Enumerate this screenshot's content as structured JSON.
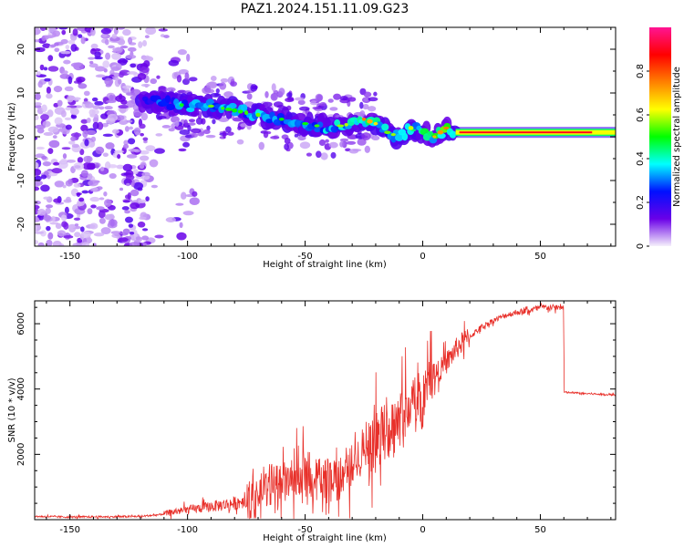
{
  "title": "PAZ1.2024.151.11.09.G23",
  "chart_data": [
    {
      "type": "heatmap",
      "xlabel": "Height of straight line (km)",
      "ylabel": "Frequency (Hz)",
      "xlim": [
        -165,
        82
      ],
      "ylim": [
        -25,
        25
      ],
      "xticks": [
        -150,
        -100,
        -50,
        0,
        50
      ],
      "yticks": [
        -20,
        -10,
        0,
        10,
        20
      ],
      "colorbar": {
        "label": "Normalized spectral amplitude",
        "range": [
          0,
          1
        ],
        "ticks": [
          0.0,
          0.2,
          0.4,
          0.6,
          0.8
        ],
        "colormap": [
          "#f5f0fb",
          "#6a00e8",
          "#0010ff",
          "#00ffff",
          "#00ff00",
          "#ffff00",
          "#ff8000",
          "#ff0000",
          "#ff1493"
        ]
      },
      "ridge": {
        "x": [
          -120,
          -110,
          -100,
          -90,
          -80,
          -70,
          -60,
          -50,
          -40,
          -30,
          -25,
          -20,
          -15,
          -10,
          -5,
          0,
          5,
          10,
          15,
          30,
          50,
          70,
          82
        ],
        "frequency": [
          8,
          8,
          7,
          7,
          6,
          5,
          4,
          3,
          2,
          3,
          4,
          3,
          1,
          0,
          2,
          1,
          0,
          2,
          1,
          1,
          1,
          1,
          1
        ],
        "amplitude": [
          0.3,
          0.45,
          0.5,
          0.55,
          0.5,
          0.55,
          0.5,
          0.5,
          0.55,
          0.6,
          0.75,
          0.65,
          0.55,
          0.6,
          0.6,
          0.65,
          0.7,
          0.75,
          0.85,
          0.9,
          0.95,
          0.9,
          0.85
        ]
      }
    },
    {
      "type": "line",
      "xlabel": "Height of straight line (km)",
      "ylabel": "SNR (10 * v/v)",
      "xlim": [
        -165,
        82
      ],
      "ylim": [
        0,
        6700
      ],
      "xticks": [
        -150,
        -100,
        -50,
        0,
        50
      ],
      "yticks": [
        2000,
        4000,
        6000
      ],
      "color": "#e8302a",
      "series": [
        {
          "x": [
            -165,
            -150,
            -130,
            -120,
            -112,
            -105,
            -100,
            -90,
            -80,
            -75,
            -70,
            -65,
            -60,
            -55,
            -50,
            -45,
            -40,
            -35,
            -30,
            -25,
            -20,
            -15,
            -10,
            -5,
            0,
            5,
            10,
            15,
            20,
            25,
            30,
            35,
            40,
            45,
            50,
            55,
            59.9,
            60,
            65,
            70,
            75,
            82
          ],
          "y": [
            100,
            80,
            90,
            100,
            150,
            250,
            300,
            400,
            500,
            600,
            800,
            1000,
            1100,
            1200,
            1200,
            1300,
            1300,
            1400,
            1600,
            2200,
            2500,
            2800,
            3100,
            3500,
            3800,
            4400,
            4800,
            5300,
            5600,
            5900,
            6100,
            6250,
            6350,
            6400,
            6500,
            6500,
            6500,
            3900,
            3880,
            3860,
            3840,
            3820
          ]
        }
      ]
    }
  ]
}
